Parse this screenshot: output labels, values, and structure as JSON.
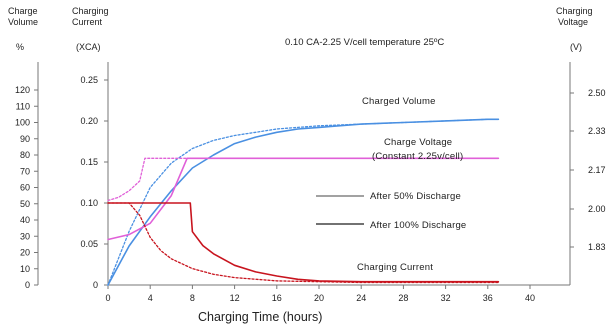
{
  "chart_data": {
    "type": "line",
    "title": "0.10 CA-2.25 V/cell temperature 25ºC",
    "xlabel": "Charging Time (hours)",
    "x_ticks": [
      0,
      4,
      8,
      12,
      16,
      20,
      24,
      28,
      32,
      36,
      40
    ],
    "xlim": [
      0,
      40
    ],
    "axes": {
      "volume": {
        "label_line1": "Charge",
        "label_line2": "Volume",
        "unit": "%",
        "ylim": [
          0,
          120
        ],
        "ticks": [
          0,
          10,
          20,
          30,
          40,
          50,
          60,
          70,
          80,
          90,
          100,
          110,
          120
        ]
      },
      "current": {
        "label_line1": "Charging",
        "label_line2": "Current",
        "unit": "(XCA)",
        "ylim": [
          0,
          0.25
        ],
        "ticks": [
          "0",
          "0.05",
          "0.10",
          "0.15",
          "0.20",
          "0.25"
        ]
      },
      "voltage": {
        "label_line1": "Charging",
        "label_line2": "Voltage",
        "unit": "(V)",
        "ticks": [
          "1.83",
          "2.00",
          "2.17",
          "2.33",
          "2.50"
        ],
        "tick_values": [
          1.83,
          2.0,
          2.17,
          2.33,
          2.5
        ]
      }
    },
    "series": [
      {
        "group": "Charged Volume",
        "variant": "After 100% Discharge",
        "axis": "volume",
        "x": [
          0,
          2,
          4,
          6,
          8,
          10,
          12,
          14,
          16,
          18,
          20,
          24,
          28,
          32,
          36,
          37
        ],
        "y": [
          0,
          24,
          42,
          58,
          72,
          80,
          87,
          91,
          94,
          96,
          97,
          99,
          100,
          101,
          102,
          102
        ]
      },
      {
        "group": "Charged Volume",
        "variant": "After 50% Discharge",
        "axis": "volume",
        "x": [
          0,
          2,
          4,
          6,
          8,
          10,
          12,
          14,
          16,
          18,
          20,
          24,
          28,
          32,
          36,
          37
        ],
        "y": [
          0,
          33,
          60,
          75,
          84,
          89,
          92,
          94,
          96,
          97,
          98,
          99,
          100,
          101,
          102,
          102
        ]
      },
      {
        "group": "Charge Voltage",
        "variant": "After 100% Discharge",
        "axis": "volume",
        "x": [
          0,
          2,
          4,
          6,
          7.5,
          8,
          12,
          16,
          20,
          24,
          28,
          32,
          36,
          37
        ],
        "y": [
          28,
          31,
          38,
          55,
          78,
          78,
          78,
          78,
          78,
          78,
          78,
          78,
          78,
          78
        ]
      },
      {
        "group": "Charge Voltage",
        "variant": "After 50% Discharge",
        "axis": "volume",
        "x": [
          0,
          1,
          2,
          3,
          3.5,
          4,
          8,
          12,
          16,
          20,
          24,
          28,
          32,
          36,
          37
        ],
        "y": [
          52,
          54,
          58,
          64,
          78,
          78,
          78,
          78,
          78,
          78,
          78,
          78,
          78,
          78,
          78
        ]
      },
      {
        "group": "Charging Current",
        "variant": "After 100% Discharge",
        "axis": "current",
        "x": [
          0,
          7.8,
          8,
          9,
          10,
          12,
          14,
          16,
          18,
          20,
          24,
          28,
          32,
          36,
          37
        ],
        "y": [
          0.1,
          0.1,
          0.065,
          0.048,
          0.038,
          0.024,
          0.016,
          0.011,
          0.007,
          0.005,
          0.004,
          0.004,
          0.004,
          0.004,
          0.004
        ]
      },
      {
        "group": "Charging Current",
        "variant": "After 50% Discharge",
        "axis": "current",
        "x": [
          0,
          2,
          3,
          4,
          5,
          6,
          8,
          10,
          12,
          16,
          20,
          24,
          28,
          32,
          36,
          37
        ],
        "y": [
          0.1,
          0.1,
          0.085,
          0.058,
          0.042,
          0.032,
          0.02,
          0.013,
          0.009,
          0.005,
          0.004,
          0.003,
          0.003,
          0.003,
          0.003,
          0.003
        ]
      }
    ],
    "annotations": {
      "charged_volume": "Charged Volume",
      "charge_voltage_1": "Charge Voltage",
      "charge_voltage_2": "(Constant 2.25v/cell)",
      "charging_current": "Charging Current"
    },
    "legend": {
      "placement": "center-right",
      "entries": [
        {
          "label": "After 50% Discharge",
          "style": "dotted"
        },
        {
          "label": "After 100% Discharge",
          "style": "solid"
        }
      ]
    },
    "colors": {
      "volume": "#4a90e2",
      "voltage": "#e060d8",
      "current": "#c8141e",
      "axis": "#777777",
      "legend_line": "#444444"
    }
  }
}
